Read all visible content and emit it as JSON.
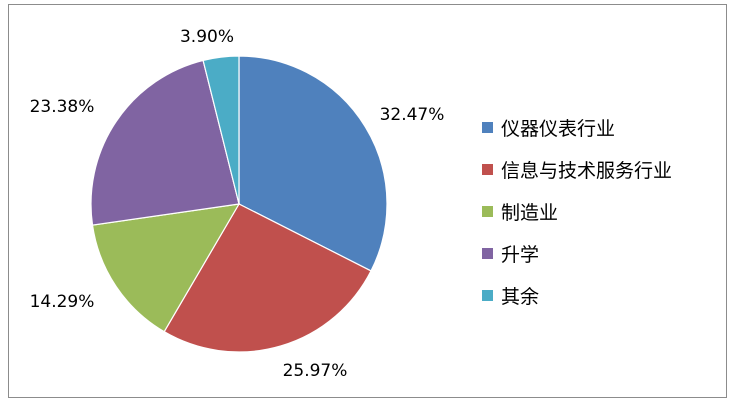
{
  "chart_data": {
    "type": "pie",
    "categories": [
      "仪器仪表行业",
      "信息与技术服务行业",
      "制造业",
      "升学",
      "其余"
    ],
    "values": [
      32.47,
      25.97,
      14.29,
      23.38,
      3.9
    ],
    "data_labels": [
      "32.47%",
      "25.97%",
      "14.29%",
      "23.38%",
      "3.90%"
    ],
    "colors": [
      "#4f81bd",
      "#c0504d",
      "#9bbb59",
      "#8064a2",
      "#4bacc6"
    ],
    "start_angle_deg": 0,
    "direction": "clockwise",
    "legend_position": "right",
    "title": ""
  }
}
